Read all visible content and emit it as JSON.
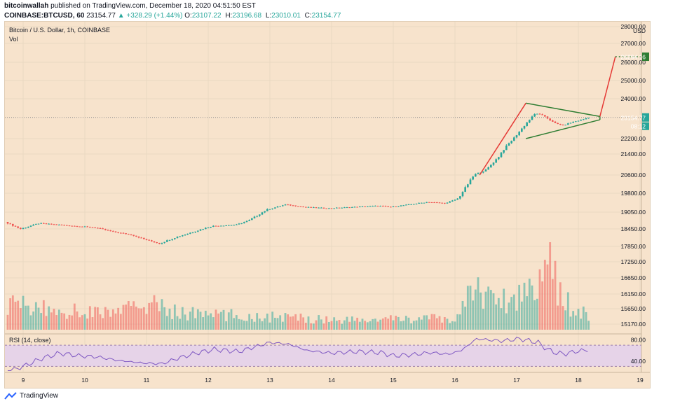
{
  "header": {
    "author": "bitcoinwallah",
    "published": "published on TradingView.com, December 18, 2020 04:51:50 EST",
    "symbol": "COINBASE:BTCUSD, 60",
    "price": "23154.77",
    "change": "▲ +328.29 (+1.44%)",
    "o_label": "O:",
    "o_value": "23107.22",
    "h_label": "H:",
    "h_value": "23196.68",
    "l_label": "L:",
    "l_value": "23010.01",
    "c_label": "C:",
    "c_value": "23154.77"
  },
  "chart_data": {
    "type": "candlestick",
    "title": "Bitcoin / U.S. Dollar, 1h, COINBASE",
    "subtitle": "Vol",
    "currency": "USD",
    "x_tick_labels": [
      "9",
      "10",
      "11",
      "12",
      "13",
      "14",
      "15",
      "16",
      "17",
      "18",
      "19"
    ],
    "y_tick_labels": [
      "28000.00",
      "27000.00",
      "26000.00",
      "25000.00",
      "24000.00",
      "22200.00",
      "21400.00",
      "20600.00",
      "19800.00",
      "19050.00",
      "18450.00",
      "17850.00",
      "17250.00",
      "16650.00",
      "16150.00",
      "15650.00",
      "15170.00"
    ],
    "y_ticks": [
      28000,
      27000,
      26000,
      25000,
      24000,
      22200,
      21400,
      20600,
      19800,
      19050,
      18450,
      17850,
      17250,
      16650,
      16150,
      15650,
      15170
    ],
    "price_path": [
      [
        8.75,
        18700
      ],
      [
        9.0,
        18450
      ],
      [
        9.3,
        18650
      ],
      [
        9.6,
        18600
      ],
      [
        9.9,
        18550
      ],
      [
        10.2,
        18500
      ],
      [
        10.5,
        18350
      ],
      [
        10.8,
        18250
      ],
      [
        11.0,
        18100
      ],
      [
        11.25,
        17950
      ],
      [
        11.5,
        18150
      ],
      [
        11.8,
        18350
      ],
      [
        12.1,
        18550
      ],
      [
        12.5,
        18600
      ],
      [
        12.7,
        18750
      ],
      [
        13.0,
        19150
      ],
      [
        13.3,
        19350
      ],
      [
        13.6,
        19250
      ],
      [
        14.0,
        19200
      ],
      [
        14.4,
        19250
      ],
      [
        14.8,
        19300
      ],
      [
        15.0,
        19250
      ],
      [
        15.3,
        19350
      ],
      [
        15.6,
        19450
      ],
      [
        15.9,
        19400
      ],
      [
        16.1,
        19600
      ],
      [
        16.2,
        20000
      ],
      [
        16.35,
        20600
      ],
      [
        16.55,
        20800
      ],
      [
        16.75,
        21300
      ],
      [
        16.9,
        21900
      ],
      [
        17.05,
        22400
      ],
      [
        17.2,
        22900
      ],
      [
        17.35,
        23350
      ],
      [
        17.5,
        23200
      ],
      [
        17.65,
        22900
      ],
      [
        17.8,
        22800
      ],
      [
        17.95,
        22950
      ],
      [
        18.1,
        23050
      ],
      [
        18.2,
        23154.77
      ]
    ],
    "volume_profile": [
      [
        8.75,
        0.35
      ],
      [
        9.5,
        0.25
      ],
      [
        10.5,
        0.22
      ],
      [
        11.0,
        0.35
      ],
      [
        11.5,
        0.22
      ],
      [
        12.5,
        0.18
      ],
      [
        13.5,
        0.15
      ],
      [
        14.5,
        0.12
      ],
      [
        15.5,
        0.15
      ],
      [
        16.0,
        0.12
      ],
      [
        16.3,
        0.55
      ],
      [
        16.55,
        0.45
      ],
      [
        16.8,
        0.38
      ],
      [
        17.0,
        0.42
      ],
      [
        17.2,
        0.55
      ],
      [
        17.35,
        0.75
      ],
      [
        17.5,
        0.9
      ],
      [
        17.7,
        0.45
      ],
      [
        17.9,
        0.28
      ],
      [
        18.1,
        0.22
      ],
      [
        18.2,
        0.15
      ]
    ],
    "rsi": {
      "label": "RSI (14, close)",
      "y_tick_labels": [
        "80.00",
        "40.00"
      ],
      "band": [
        30,
        70
      ],
      "values": [
        [
          8.75,
          20
        ],
        [
          9.0,
          30
        ],
        [
          9.3,
          45
        ],
        [
          9.6,
          55
        ],
        [
          9.9,
          50
        ],
        [
          10.2,
          48
        ],
        [
          10.5,
          42
        ],
        [
          10.8,
          38
        ],
        [
          11.0,
          36
        ],
        [
          11.25,
          35
        ],
        [
          11.5,
          45
        ],
        [
          11.8,
          55
        ],
        [
          12.1,
          62
        ],
        [
          12.5,
          58
        ],
        [
          12.7,
          65
        ],
        [
          13.0,
          75
        ],
        [
          13.3,
          72
        ],
        [
          13.6,
          60
        ],
        [
          14.0,
          55
        ],
        [
          14.4,
          58
        ],
        [
          14.8,
          56
        ],
        [
          15.0,
          50
        ],
        [
          15.3,
          52
        ],
        [
          15.6,
          56
        ],
        [
          15.9,
          53
        ],
        [
          16.1,
          60
        ],
        [
          16.35,
          82
        ],
        [
          16.55,
          80
        ],
        [
          16.75,
          78
        ],
        [
          16.9,
          80
        ],
        [
          17.05,
          82
        ],
        [
          17.35,
          75
        ],
        [
          17.5,
          62
        ],
        [
          17.65,
          55
        ],
        [
          17.8,
          54
        ],
        [
          17.95,
          58
        ],
        [
          18.2,
          62
        ]
      ],
      "color": "#7e57c2"
    },
    "last_price_label": "23154.77",
    "countdown_label": "08:12",
    "target_price_label": "26294.16",
    "flagpole": [
      [
        16.4,
        20600
      ],
      [
        17.15,
        23800
      ]
    ],
    "pennant_upper": [
      [
        17.15,
        23800
      ],
      [
        18.35,
        23200
      ]
    ],
    "pennant_lower": [
      [
        17.15,
        22200
      ],
      [
        18.35,
        23050
      ]
    ],
    "projection": [
      [
        18.35,
        23200
      ],
      [
        18.6,
        26300
      ]
    ],
    "target_price": 26294.16,
    "colors": {
      "up": "#26a69a",
      "down": "#ef5350",
      "pattern_line": "#2e7d32",
      "projection": "#e53935",
      "target_label_bg": "#2e7d32",
      "last_price_bg": "#26a69a",
      "rsi_band": "#e6d3e8"
    }
  },
  "footer": {
    "brand": "TradingView"
  }
}
